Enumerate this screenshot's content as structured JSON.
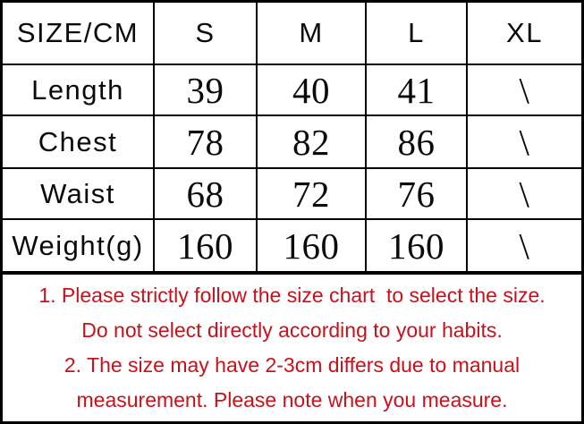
{
  "table": {
    "unit_label": "SIZE/CM",
    "header": [
      "SIZE/CM",
      "S",
      "M",
      "L",
      "XL"
    ],
    "rows": [
      {
        "label": "Length",
        "values": [
          "39",
          "40",
          "41",
          "\\"
        ]
      },
      {
        "label": "Chest",
        "values": [
          "78",
          "82",
          "86",
          "\\"
        ]
      },
      {
        "label": "Waist",
        "values": [
          "68",
          "72",
          "76",
          "\\"
        ]
      },
      {
        "label": "Weight(g)",
        "values": [
          "160",
          "160",
          "160",
          "\\"
        ]
      }
    ]
  },
  "notes": {
    "color": "#c8121b",
    "lines": [
      "1. Please strictly follow the size chart  to select the size.",
      "Do not select directly according to your habits.",
      "2. The size may have 2-3cm differs due to manual",
      "measurement. Please note when you measure."
    ]
  },
  "colors": {
    "border": "#000000",
    "text": "#0a0a0a",
    "note_red": "#c8121b",
    "background": "#ffffff"
  }
}
